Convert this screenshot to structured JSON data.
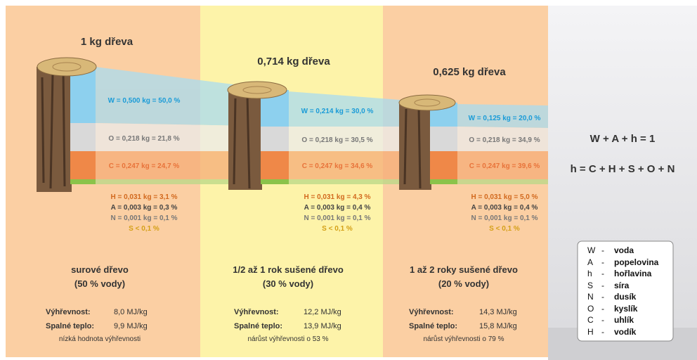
{
  "columns": [
    {
      "title": "1 kg dřeva",
      "components": [
        "W = 0,500 kg = 50,0 %",
        "O = 0,218 kg = 21,8 %",
        "C = 0,247 kg = 24,7 %",
        "H = 0,031 kg = 3,1 %",
        "A = 0,003 kg = 0,3 %",
        "N = 0,001 kg = 0,1 %",
        "S < 0,1 %"
      ],
      "state": "surové dřevo",
      "water": "(50 % vody)",
      "heat_label": "Výhřevnost:",
      "heat_value": "8,0 MJ/kg",
      "gross_label": "Spalné teplo:",
      "gross_value": "9,9 MJ/kg",
      "note": "nízká hodnota výhřevnosti"
    },
    {
      "title": "0,714 kg dřeva",
      "components": [
        "W = 0,214 kg = 30,0 %",
        "O = 0,218 kg = 30,5 %",
        "C = 0,247 kg = 34,6 %",
        "H = 0,031 kg = 4,3 %",
        "A = 0,003 kg = 0,4 %",
        "N = 0,001 kg = 0,1 %",
        "S < 0,1 %"
      ],
      "state": "1/2 až 1 rok sušené dřevo",
      "water": "(30 % vody)",
      "heat_label": "Výhřevnost:",
      "heat_value": "12,2 MJ/kg",
      "gross_label": "Spalné teplo:",
      "gross_value": "13,9 MJ/kg",
      "note": "nárůst výhřevnosti o 53 %"
    },
    {
      "title": "0,625 kg dřeva",
      "components": [
        "W = 0,125 kg = 20,0 %",
        "O = 0,218 kg = 34,9 %",
        "C = 0,247 kg = 39,6 %",
        "H = 0,031 kg = 5,0 %",
        "A = 0,003 kg = 0,4 %",
        "N = 0,001 kg = 0,1 %",
        "S < 0,1 %"
      ],
      "state": "1 až 2 roky sušené dřevo",
      "water": "(20 % vody)",
      "heat_label": "Výhřevnost:",
      "heat_value": "14,3 MJ/kg",
      "gross_label": "Spalné teplo:",
      "gross_value": "15,8 MJ/kg",
      "note": "nárůst výhřevnosti o 79 %"
    }
  ],
  "formulas": [
    "W + A + h = 1",
    "h = C + H + S + O + N"
  ],
  "legend": [
    {
      "symbol": "W",
      "dash": "-",
      "label": "voda"
    },
    {
      "symbol": "A",
      "dash": "-",
      "label": "popelovina"
    },
    {
      "symbol": "h",
      "dash": "-",
      "label": "hořlavina"
    },
    {
      "symbol": "S",
      "dash": "-",
      "label": "síra"
    },
    {
      "symbol": "N",
      "dash": "-",
      "label": "dusík"
    },
    {
      "symbol": "O",
      "dash": "-",
      "label": "kyslík"
    },
    {
      "symbol": "C",
      "dash": "-",
      "label": "uhlík"
    },
    {
      "symbol": "H",
      "dash": "-",
      "label": "vodík"
    }
  ]
}
